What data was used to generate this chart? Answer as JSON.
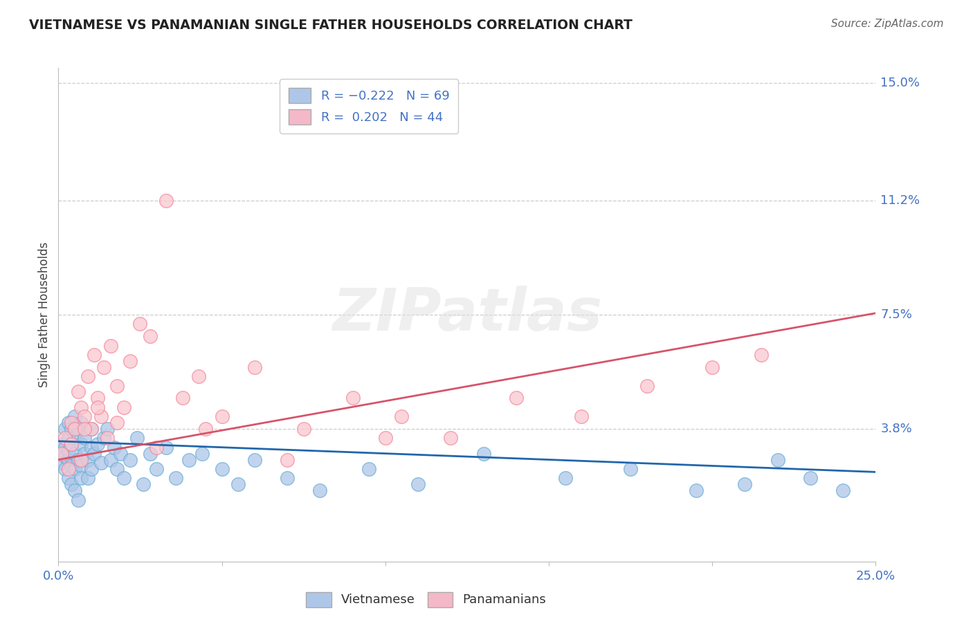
{
  "title": "VIETNAMESE VS PANAMANIAN SINGLE FATHER HOUSEHOLDS CORRELATION CHART",
  "source_text": "Source: ZipAtlas.com",
  "ylabel": "Single Father Households",
  "xlim": [
    0.0,
    0.25
  ],
  "ylim": [
    -0.005,
    0.155
  ],
  "ytick_labels_right": [
    "3.8%",
    "7.5%",
    "11.2%",
    "15.0%"
  ],
  "ytick_vals_right": [
    0.038,
    0.075,
    0.112,
    0.15
  ],
  "watermark": "ZIPatlas",
  "viet_color": "#6baed6",
  "pan_color": "#f4879a",
  "line_viet_color": "#2166ac",
  "line_pan_color": "#d6546a",
  "viet_R": -0.222,
  "viet_N": 69,
  "pan_R": 0.202,
  "pan_N": 44,
  "legend_box_viet": "#aec6e8",
  "legend_box_pan": "#f4b8c8",
  "viet_line_intercept": 0.034,
  "viet_line_slope": -0.04,
  "pan_line_intercept": 0.028,
  "pan_line_slope": 0.19,
  "viet_x": [
    0.001,
    0.001,
    0.001,
    0.002,
    0.002,
    0.002,
    0.002,
    0.003,
    0.003,
    0.003,
    0.003,
    0.003,
    0.004,
    0.004,
    0.004,
    0.004,
    0.005,
    0.005,
    0.005,
    0.005,
    0.005,
    0.006,
    0.006,
    0.006,
    0.007,
    0.007,
    0.007,
    0.007,
    0.008,
    0.008,
    0.009,
    0.009,
    0.01,
    0.01,
    0.01,
    0.011,
    0.012,
    0.013,
    0.014,
    0.015,
    0.016,
    0.017,
    0.018,
    0.019,
    0.02,
    0.022,
    0.024,
    0.026,
    0.028,
    0.03,
    0.033,
    0.036,
    0.04,
    0.044,
    0.05,
    0.055,
    0.06,
    0.07,
    0.08,
    0.095,
    0.11,
    0.13,
    0.155,
    0.175,
    0.195,
    0.21,
    0.22,
    0.23,
    0.24
  ],
  "viet_y": [
    0.033,
    0.03,
    0.027,
    0.038,
    0.025,
    0.032,
    0.029,
    0.035,
    0.022,
    0.028,
    0.04,
    0.031,
    0.026,
    0.038,
    0.02,
    0.033,
    0.03,
    0.025,
    0.042,
    0.018,
    0.035,
    0.028,
    0.038,
    0.015,
    0.033,
    0.026,
    0.04,
    0.022,
    0.03,
    0.035,
    0.028,
    0.022,
    0.038,
    0.032,
    0.025,
    0.03,
    0.033,
    0.027,
    0.035,
    0.038,
    0.028,
    0.032,
    0.025,
    0.03,
    0.022,
    0.028,
    0.035,
    0.02,
    0.03,
    0.025,
    0.032,
    0.022,
    0.028,
    0.03,
    0.025,
    0.02,
    0.028,
    0.022,
    0.018,
    0.025,
    0.02,
    0.03,
    0.022,
    0.025,
    0.018,
    0.02,
    0.028,
    0.022,
    0.018
  ],
  "pan_x": [
    0.001,
    0.002,
    0.003,
    0.004,
    0.004,
    0.005,
    0.006,
    0.007,
    0.007,
    0.008,
    0.009,
    0.01,
    0.011,
    0.012,
    0.013,
    0.014,
    0.015,
    0.016,
    0.018,
    0.02,
    0.022,
    0.025,
    0.028,
    0.033,
    0.038,
    0.043,
    0.05,
    0.06,
    0.075,
    0.09,
    0.105,
    0.12,
    0.14,
    0.16,
    0.18,
    0.2,
    0.215,
    0.008,
    0.012,
    0.018,
    0.03,
    0.045,
    0.07,
    0.1
  ],
  "pan_y": [
    0.03,
    0.035,
    0.025,
    0.04,
    0.033,
    0.038,
    0.05,
    0.045,
    0.028,
    0.042,
    0.055,
    0.038,
    0.062,
    0.048,
    0.042,
    0.058,
    0.035,
    0.065,
    0.052,
    0.045,
    0.06,
    0.072,
    0.068,
    0.112,
    0.048,
    0.055,
    0.042,
    0.058,
    0.038,
    0.048,
    0.042,
    0.035,
    0.048,
    0.042,
    0.052,
    0.058,
    0.062,
    0.038,
    0.045,
    0.04,
    0.032,
    0.038,
    0.028,
    0.035
  ]
}
